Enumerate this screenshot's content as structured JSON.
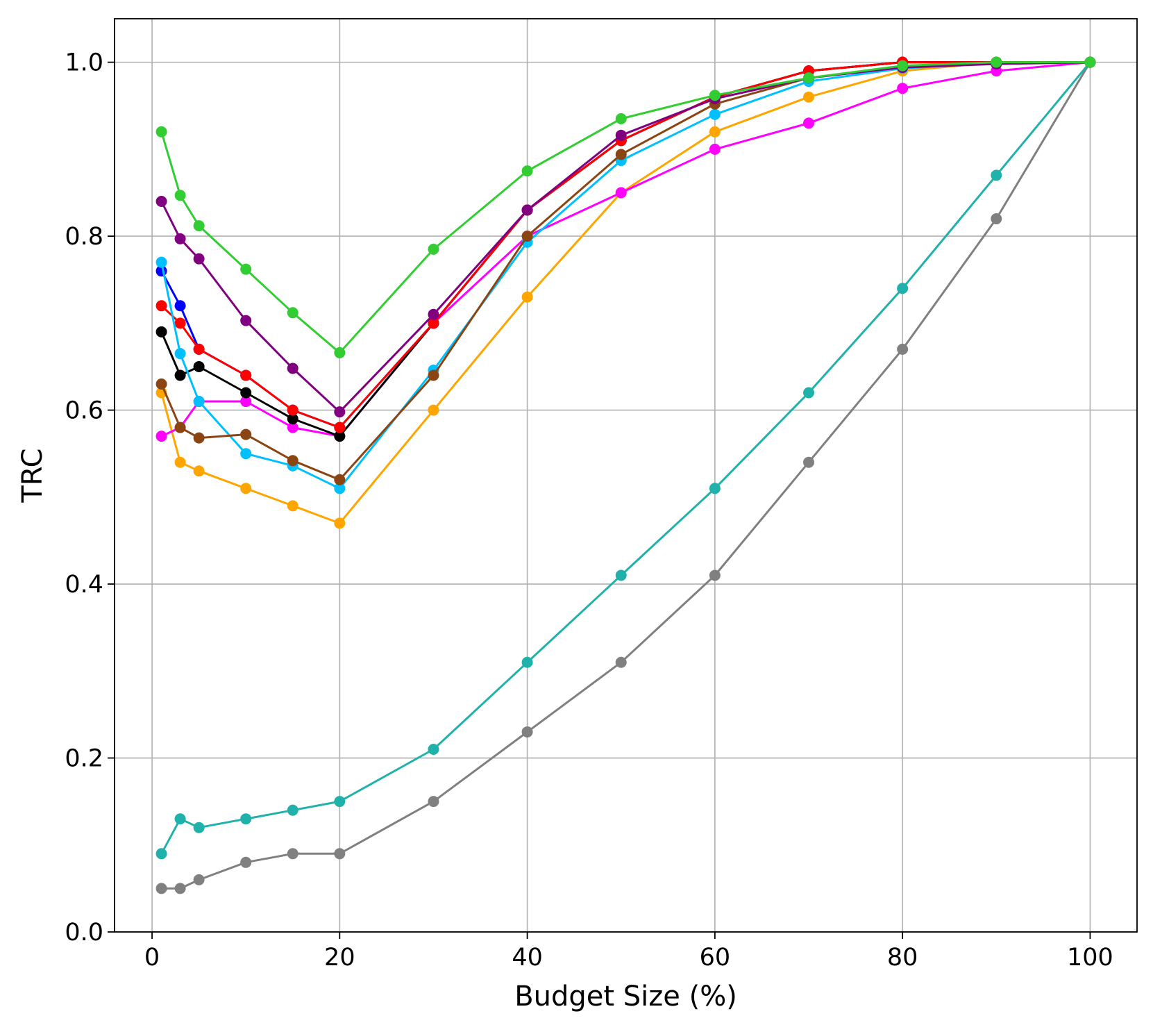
{
  "chart_data": {
    "type": "line",
    "title": "",
    "xlabel": "Budget Size (%)",
    "ylabel": "TRC",
    "xlim": [
      -4,
      105
    ],
    "ylim": [
      0.0,
      1.05
    ],
    "grid": true,
    "x_ticks": [
      0,
      20,
      40,
      60,
      80,
      100
    ],
    "x_tick_labels": [
      "0",
      "20",
      "40",
      "60",
      "80",
      "100"
    ],
    "y_ticks": [
      0.0,
      0.2,
      0.4,
      0.6,
      0.8,
      1.0
    ],
    "y_tick_labels": [
      "0.0",
      "0.2",
      "0.4",
      "0.6",
      "0.8",
      "1.0"
    ],
    "x": [
      1,
      3,
      5,
      10,
      15,
      20,
      30,
      40,
      50,
      60,
      70,
      80,
      90,
      100
    ],
    "series": [
      {
        "name": "gray",
        "color": "#808080",
        "values": [
          0.05,
          0.05,
          0.06,
          0.08,
          0.09,
          0.09,
          0.15,
          0.23,
          0.31,
          0.41,
          0.54,
          0.67,
          0.82,
          1.0
        ]
      },
      {
        "name": "teal",
        "color": "#20b2aa",
        "values": [
          0.09,
          0.13,
          0.12,
          0.13,
          0.14,
          0.15,
          0.21,
          0.31,
          0.41,
          0.51,
          0.62,
          0.74,
          0.87,
          1.0
        ]
      },
      {
        "name": "orange",
        "color": "#ffa500",
        "values": [
          0.62,
          0.54,
          0.53,
          0.51,
          0.49,
          0.47,
          0.6,
          0.73,
          0.85,
          0.92,
          0.96,
          0.99,
          1.0,
          1.0
        ]
      },
      {
        "name": "magenta",
        "color": "#ff00ff",
        "values": [
          0.57,
          0.58,
          0.61,
          0.61,
          0.58,
          0.57,
          0.7,
          0.8,
          0.85,
          0.9,
          0.93,
          0.97,
          0.99,
          1.0
        ]
      },
      {
        "name": "blue",
        "color": "#0000ff",
        "values": [
          0.76,
          0.72,
          0.67,
          0.64,
          0.6,
          0.58,
          0.7,
          0.83,
          0.91,
          0.96,
          0.99,
          1.0,
          1.0,
          1.0
        ]
      },
      {
        "name": "black",
        "color": "#000000",
        "values": [
          0.69,
          0.64,
          0.65,
          0.62,
          0.59,
          0.57,
          0.7,
          0.83,
          0.91,
          0.96,
          0.99,
          1.0,
          1.0,
          1.0
        ]
      },
      {
        "name": "red",
        "color": "#ff0000",
        "values": [
          0.72,
          0.7,
          0.67,
          0.64,
          0.6,
          0.58,
          0.7,
          0.83,
          0.91,
          0.96,
          0.99,
          1.0,
          1.0,
          1.0
        ]
      },
      {
        "name": "deepskyblue",
        "color": "#00bfff",
        "values": [
          0.77,
          0.665,
          0.61,
          0.55,
          0.536,
          0.51,
          0.646,
          0.793,
          0.887,
          0.94,
          0.978,
          0.993,
          0.999,
          1.0
        ]
      },
      {
        "name": "saddlebrown",
        "color": "#8b4513",
        "values": [
          0.63,
          0.58,
          0.568,
          0.572,
          0.542,
          0.52,
          0.64,
          0.8,
          0.894,
          0.952,
          0.982,
          0.995,
          0.999,
          1.0
        ]
      },
      {
        "name": "purple",
        "color": "#800080",
        "values": [
          0.84,
          0.797,
          0.774,
          0.703,
          0.648,
          0.598,
          0.71,
          0.83,
          0.916,
          0.958,
          0.982,
          0.994,
          0.998,
          1.0
        ]
      },
      {
        "name": "limegreen",
        "color": "#32cd32",
        "values": [
          0.92,
          0.847,
          0.812,
          0.762,
          0.712,
          0.666,
          0.785,
          0.875,
          0.935,
          0.962,
          0.982,
          0.996,
          1.0,
          1.0
        ]
      }
    ]
  }
}
